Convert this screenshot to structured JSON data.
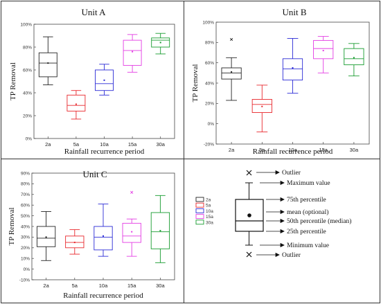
{
  "colors": {
    "2a": "#222222",
    "5a": "#e8262b",
    "10a": "#2b2bd6",
    "15a": "#e33be3",
    "30a": "#169b2e"
  },
  "chart_data": [
    {
      "type": "box",
      "title": "Unit A",
      "xlabel": "Rainfall recurrence period",
      "ylabel": "TP Removal",
      "ylim": [
        0,
        100
      ],
      "yticks": [
        "0%",
        "20%",
        "40%",
        "60%",
        "80%",
        "100%"
      ],
      "categories": [
        "2a",
        "5a",
        "10a",
        "15a",
        "30a"
      ],
      "boxes": [
        {
          "min": 47,
          "q1": 54,
          "median": 66,
          "q3": 75,
          "max": 89,
          "mean": 66
        },
        {
          "min": 17,
          "q1": 24,
          "median": 29,
          "q3": 38,
          "max": 42,
          "mean": 30
        },
        {
          "min": 38,
          "q1": 42,
          "median": 48,
          "q3": 60,
          "max": 65,
          "mean": 51
        },
        {
          "min": 58,
          "q1": 64,
          "median": 77,
          "q3": 86,
          "max": 91,
          "mean": 76
        },
        {
          "min": 74,
          "q1": 80,
          "median": 86,
          "q3": 88,
          "max": 92,
          "mean": 84
        }
      ]
    },
    {
      "type": "box",
      "title": "Unit B",
      "xlabel": "Rainfall recurrence period",
      "ylabel": "TP Removal",
      "ylim": [
        -20,
        100
      ],
      "yticks": [
        "-20%",
        "0%",
        "20%",
        "40%",
        "60%",
        "80%",
        "100%"
      ],
      "categories": [
        "2a",
        "5a",
        "10a",
        "15a",
        "30a"
      ],
      "boxes": [
        {
          "min": 23,
          "q1": 44,
          "median": 50,
          "q3": 55,
          "max": 65,
          "mean": 51,
          "outliers": [
            83
          ]
        },
        {
          "min": -8,
          "q1": 11,
          "median": 19,
          "q3": 24,
          "max": 38,
          "mean": 17
        },
        {
          "min": 30,
          "q1": 43,
          "median": 54,
          "q3": 64,
          "max": 84,
          "mean": 55
        },
        {
          "min": 50,
          "q1": 64,
          "median": 74,
          "q3": 82,
          "max": 86,
          "mean": 72
        },
        {
          "min": 47,
          "q1": 58,
          "median": 64,
          "q3": 74,
          "max": 79,
          "mean": 65
        }
      ]
    },
    {
      "type": "box",
      "title": "Unit C",
      "xlabel": "Rainfall recurrence period",
      "ylabel": "TP Removal",
      "ylim": [
        -10,
        90
      ],
      "yticks": [
        "-10%",
        "0%",
        "10%",
        "20%",
        "30%",
        "40%",
        "50%",
        "60%",
        "70%",
        "80%",
        "90%"
      ],
      "categories": [
        "2a",
        "5a",
        "10a",
        "15a",
        "30a"
      ],
      "legend": [
        "2a",
        "5a",
        "10a",
        "15a",
        "30a"
      ],
      "boxes": [
        {
          "min": 8,
          "q1": 21,
          "median": 29,
          "q3": 40,
          "max": 54,
          "mean": 30
        },
        {
          "min": 14,
          "q1": 20,
          "median": 25,
          "q3": 31,
          "max": 37,
          "mean": 25
        },
        {
          "min": 12,
          "q1": 18,
          "median": 30,
          "q3": 40,
          "max": 61,
          "mean": 31
        },
        {
          "min": 12,
          "q1": 25,
          "median": 31,
          "q3": 43,
          "max": 47,
          "mean": 35,
          "outliers": [
            72
          ]
        },
        {
          "min": 6,
          "q1": 19,
          "median": 35,
          "q3": 53,
          "max": 69,
          "mean": 36
        }
      ]
    }
  ],
  "key": {
    "labels": {
      "outlier_top": "Outlier",
      "max": "Maximum value",
      "p75": "75th percentile",
      "mean": "mean (optional)",
      "median": "50th percentile (median)",
      "p25": "25th percentile",
      "min": "Minimum value",
      "outlier_bottom": "Outlier"
    }
  }
}
